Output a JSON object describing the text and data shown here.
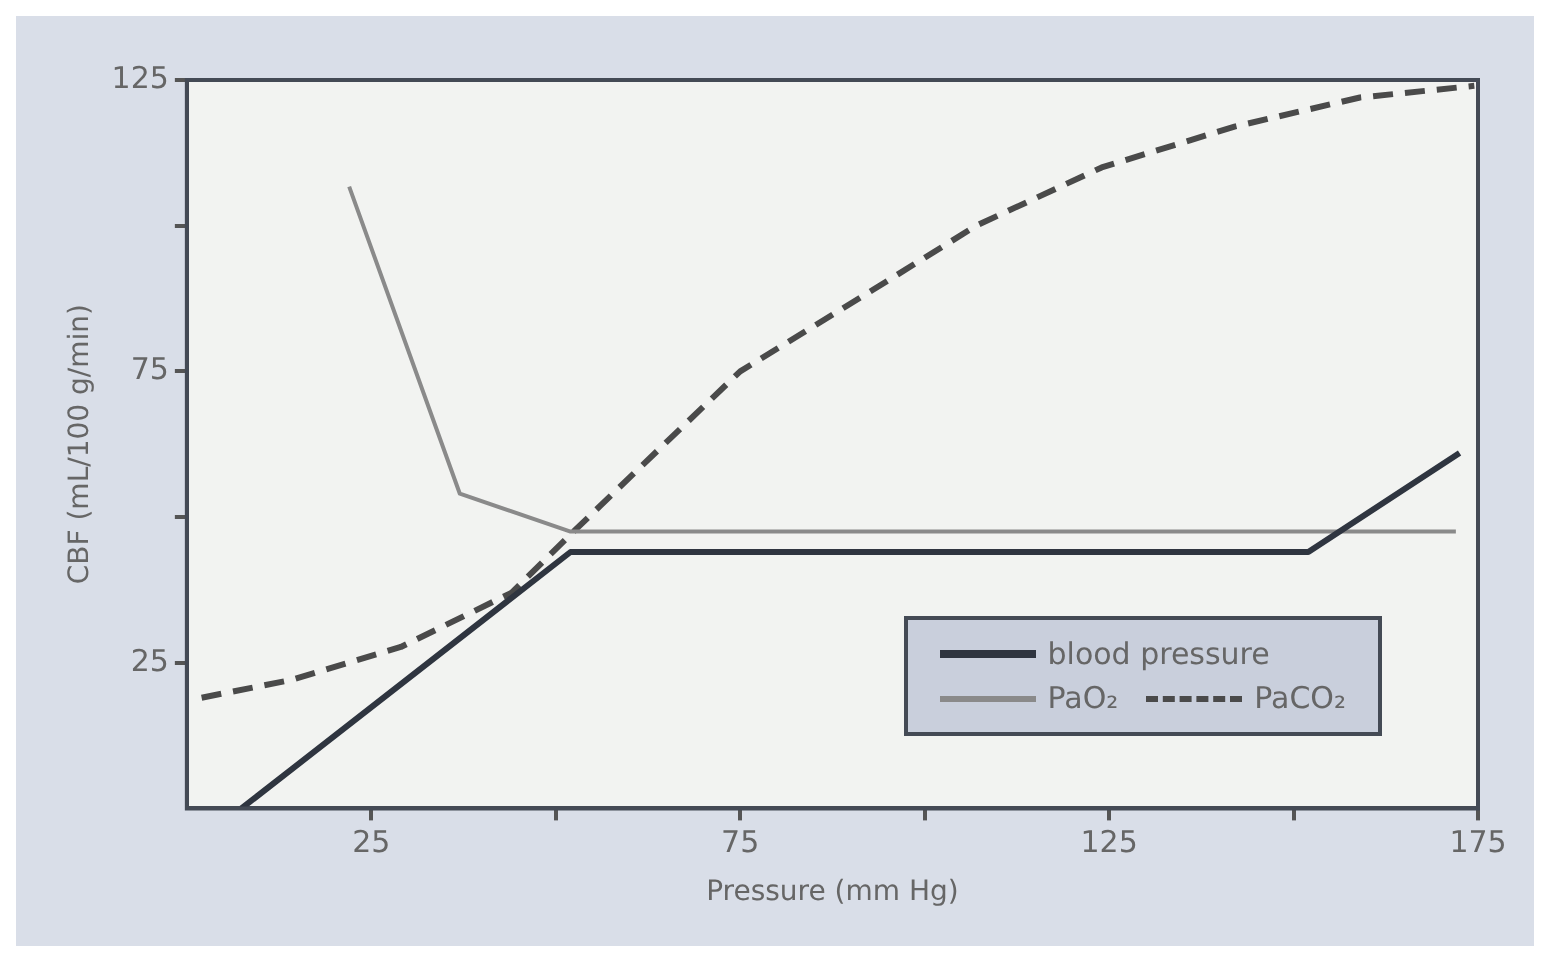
{
  "chart_data": {
    "type": "line",
    "xlabel": "Pressure (mm Hg)",
    "ylabel": "CBF (mL/100 g/min)",
    "xlim": [
      0,
      175
    ],
    "ylim": [
      0,
      125
    ],
    "xticks": [
      25,
      {
        "value": 50,
        "label": null
      },
      75,
      {
        "value": 100,
        "label": null
      },
      125,
      {
        "value": 150,
        "label": null
      },
      175
    ],
    "yticks": [
      25,
      {
        "value": 50,
        "label": null
      },
      75,
      {
        "value": 100,
        "label": null
      },
      125
    ],
    "grid": false,
    "legend": "bottom right",
    "marker": "none",
    "series": [
      {
        "name": "blood pressure",
        "color": "#2f3540",
        "line_style": "solid",
        "x": [
          7.4,
          52,
          152,
          172.5
        ],
        "values": [
          0,
          44,
          44,
          61
        ]
      },
      {
        "name": "PaO₂",
        "color": "#8a8a8a",
        "line_style": "solid",
        "x": [
          22,
          37,
          52,
          172
        ],
        "values": [
          106.7,
          54,
          47.5,
          47.5
        ]
      },
      {
        "name": "PaCO₂",
        "color": "#4a4a4a",
        "line_style": "dashed",
        "x": [
          2,
          14,
          29,
          44,
          52,
          61,
          75,
          93,
          107,
          124,
          142,
          159,
          174.5
        ],
        "values": [
          19,
          22,
          27.7,
          37,
          47,
          58,
          75,
          89,
          100,
          110,
          117,
          122,
          124
        ]
      }
    ]
  }
}
